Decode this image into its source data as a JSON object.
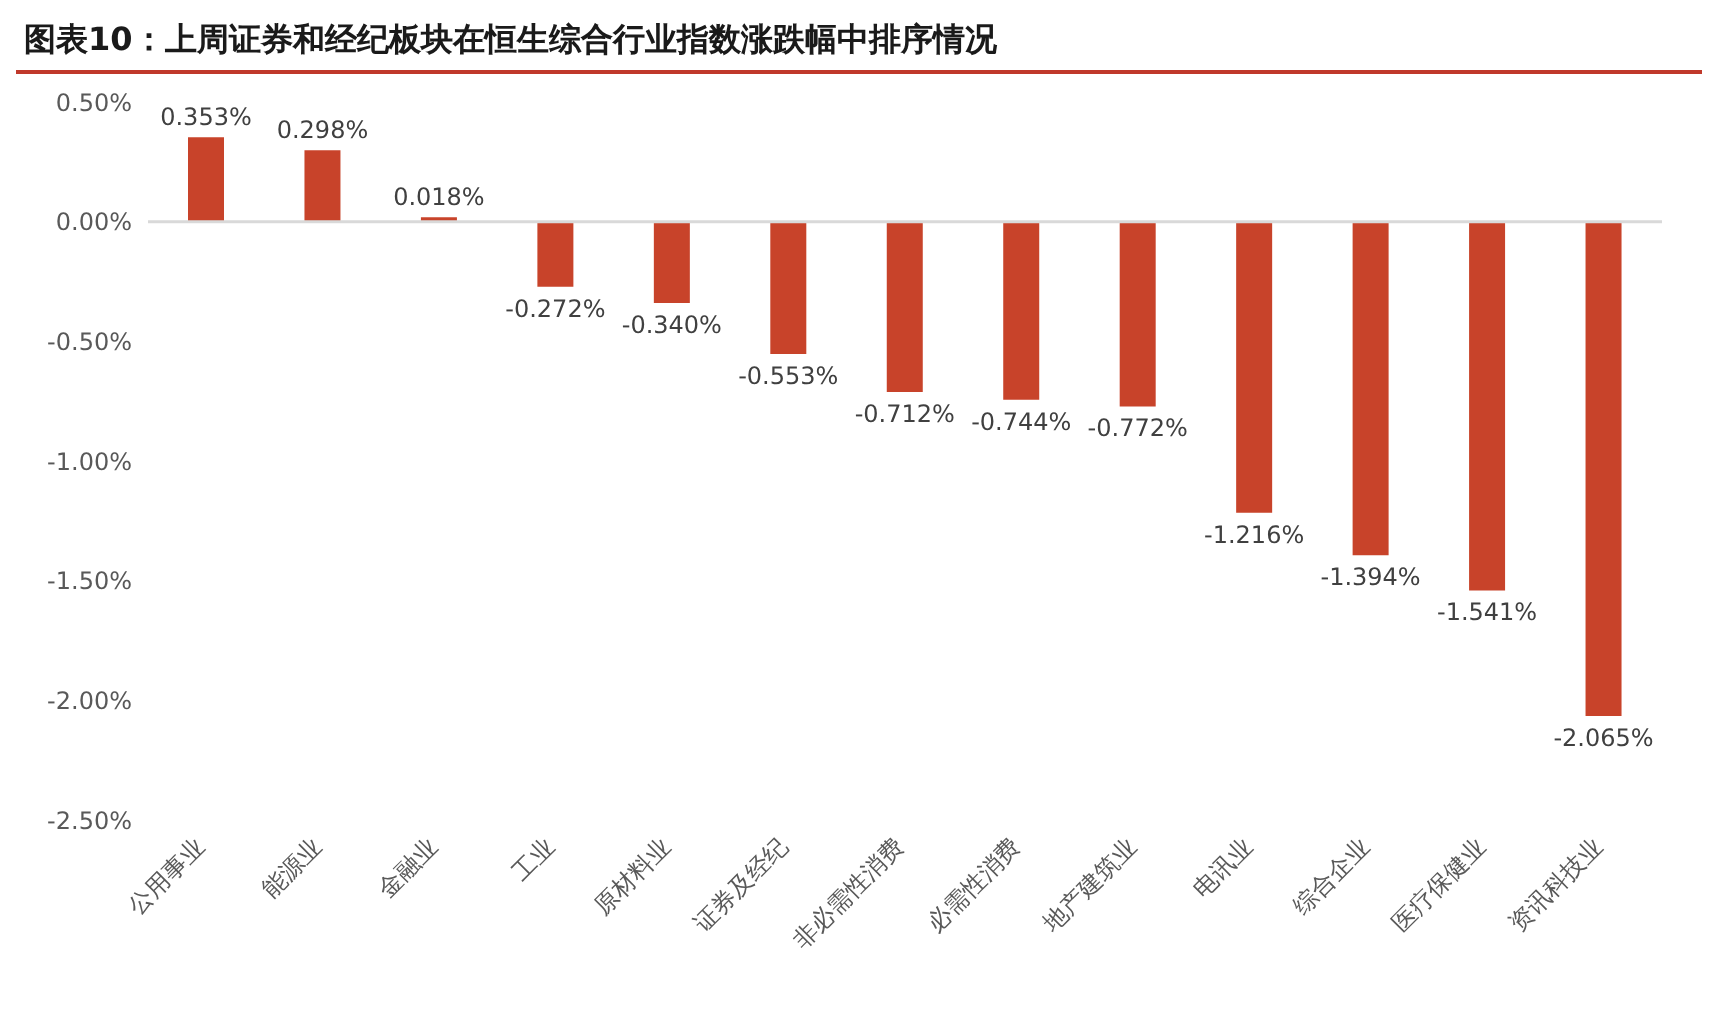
{
  "chart_data": {
    "type": "bar",
    "title": "图表10：上周证券和经纪板块在恒生综合行业指数涨跌幅中排序情况",
    "categories": [
      "公用事业",
      "能源业",
      "金融业",
      "工业",
      "原材料业",
      "证券及经纪",
      "非必需性消费",
      "必需性消费",
      "地产建筑业",
      "电讯业",
      "综合企业",
      "医疗保健业",
      "资讯科技业"
    ],
    "values": [
      0.353,
      0.298,
      0.018,
      -0.272,
      -0.34,
      -0.553,
      -0.712,
      -0.744,
      -0.772,
      -1.216,
      -1.394,
      -1.541,
      -2.065
    ],
    "value_labels": [
      "0.353%",
      "0.298%",
      "0.018%",
      "-0.272%",
      "-0.340%",
      "-0.553%",
      "-0.712%",
      "-0.744%",
      "-0.772%",
      "-1.216%",
      "-1.394%",
      "-1.541%",
      "-2.065%"
    ],
    "color": "#c8432a",
    "ylim": [
      -2.5,
      0.5
    ],
    "yticks": [
      {
        "value": 0.5,
        "label": "0.50%"
      },
      {
        "value": 0,
        "label": "0.00%"
      },
      {
        "value": -0.5,
        "label": "-0.50%"
      },
      {
        "value": -1,
        "label": "-1.00%"
      },
      {
        "value": -1.5,
        "label": "-1.50%"
      },
      {
        "value": -2,
        "label": "-2.00%"
      },
      {
        "value": -2.5,
        "label": "-2.50%"
      }
    ],
    "legend": false
  }
}
